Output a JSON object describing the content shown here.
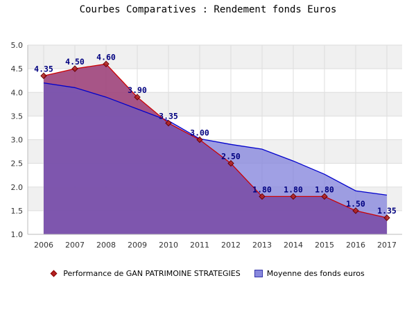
{
  "chart_data": {
    "type": "area",
    "title": "Courbes Comparatives : Rendement fonds Euros",
    "categories": [
      "2006",
      "2007",
      "2008",
      "2009",
      "2010",
      "2011",
      "2012",
      "2013",
      "2014",
      "2015",
      "2016",
      "2017"
    ],
    "ylim": [
      1.0,
      5.0
    ],
    "yticks": [
      "1.0",
      "1.5",
      "2.0",
      "2.5",
      "3.0",
      "3.5",
      "4.0",
      "4.5",
      "5.0"
    ],
    "grid": true,
    "legend_position": "bottom",
    "series": [
      {
        "name": "Performance de GAN PATRIMOINE STRATEGIES",
        "values": [
          4.35,
          4.5,
          4.6,
          3.9,
          3.35,
          3.0,
          2.5,
          1.8,
          1.8,
          1.8,
          1.5,
          1.35
        ],
        "labels": [
          "4.35",
          "4.50",
          "4.60",
          "3.90",
          "3.35",
          "3.00",
          "2.50",
          "1.80",
          "1.80",
          "1.80",
          "1.50",
          "1.35"
        ],
        "fill_color": "#e07070",
        "line_color": "#cc0000",
        "marker_color": "#b22222"
      },
      {
        "name": "Moyenne des fonds euros",
        "values": [
          4.2,
          4.1,
          3.9,
          3.65,
          3.4,
          3.02,
          2.9,
          2.8,
          2.55,
          2.27,
          1.92,
          1.83
        ],
        "fill_color": "#8888dd",
        "line_color": "#0000cc"
      }
    ]
  }
}
